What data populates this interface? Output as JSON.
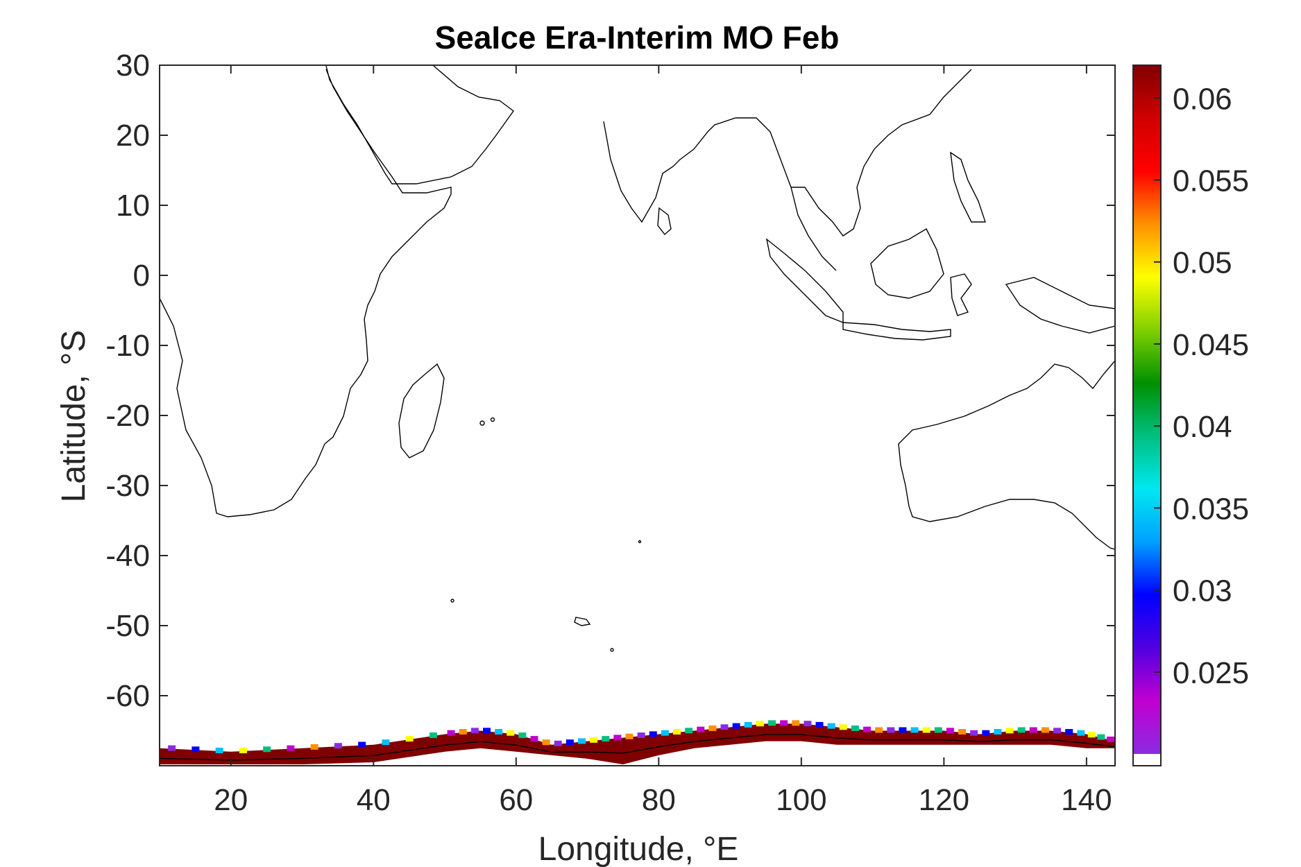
{
  "chart_data": {
    "type": "heatmap",
    "title": "SeaIce Era-Interim MO Feb",
    "xlabel": "Longitude, °E",
    "ylabel": "Latitude, °S",
    "xlim": [
      10,
      144
    ],
    "ylim": [
      -70,
      30
    ],
    "xticks": [
      20,
      40,
      60,
      80,
      100,
      120,
      140
    ],
    "yticks": [
      30,
      20,
      10,
      0,
      -10,
      -20,
      -30,
      -40,
      -50,
      -60
    ],
    "colorbar": {
      "range": [
        0.02,
        0.062
      ],
      "ticks": [
        0.06,
        0.055,
        0.05,
        0.045,
        0.04,
        0.035,
        0.03,
        0.025
      ],
      "colormap": [
        "#8a2be2",
        "#c000d0",
        "#5000e0",
        "#0000ff",
        "#00a0ff",
        "#00e8f0",
        "#00c080",
        "#009000",
        "#80d000",
        "#ffff00",
        "#ff9000",
        "#ff0000",
        "#d00000",
        "#800000"
      ],
      "below_range_color": "#ffffff"
    },
    "ice_edge": {
      "description_value": "sea ice concentration mostly at or above 0.062 near the Antarctic coast",
      "lon": [
        10,
        20,
        30,
        40,
        50,
        55,
        60,
        65,
        70,
        75,
        80,
        85,
        90,
        95,
        100,
        105,
        110,
        115,
        120,
        125,
        130,
        135,
        140,
        144
      ],
      "north_lat": [
        -67.5,
        -68,
        -67.5,
        -67,
        -65.5,
        -65,
        -65.5,
        -67,
        -66.5,
        -66,
        -65.5,
        -65,
        -64.5,
        -64,
        -64,
        -64.5,
        -65,
        -65,
        -65,
        -65.5,
        -65,
        -65,
        -65.5,
        -66.5
      ],
      "south_lat": [
        -69.8,
        -69.8,
        -69.8,
        -69.5,
        -68,
        -67.5,
        -68,
        -68.5,
        -69,
        -69.8,
        -68.5,
        -67.5,
        -67,
        -66.5,
        -66.5,
        -67,
        -67,
        -67,
        -67,
        -67,
        -67,
        -67,
        -67.5,
        -67.5
      ]
    }
  },
  "colors": {
    "ice": "#800000",
    "axis": "#262626",
    "coast": "#000000"
  }
}
